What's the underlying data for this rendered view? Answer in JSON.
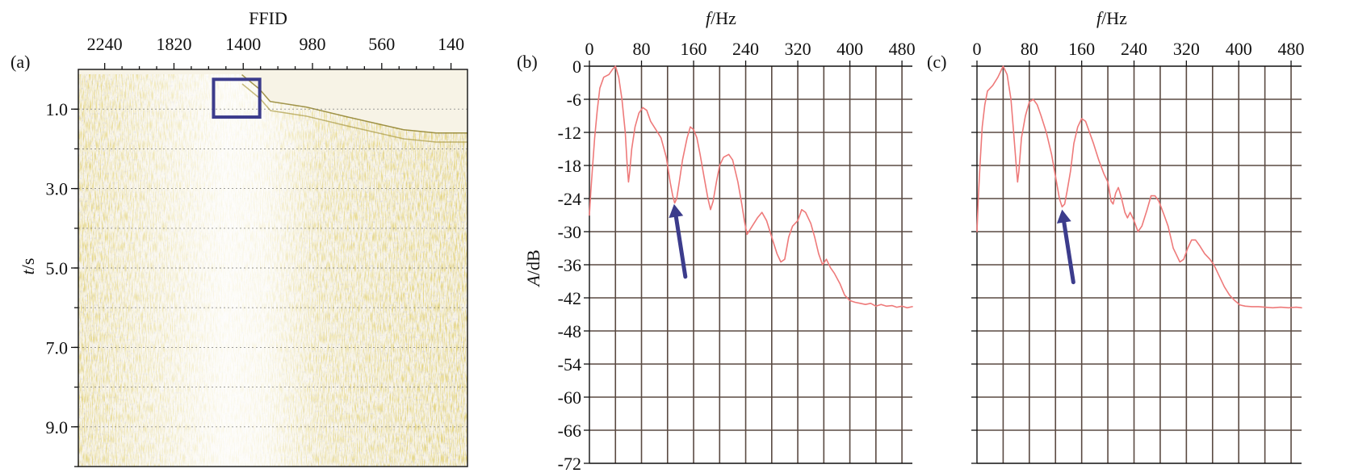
{
  "panel_a": {
    "label": "(a)",
    "xlabel": "FFID",
    "ylabel_italic": "t",
    "ylabel_unit": "/s",
    "colors": {
      "trace_gold": "#c8a832",
      "trace_blue": "#8a8ab4",
      "box": "#3c3c8c"
    }
  },
  "panel_b": {
    "label": "(b)",
    "xlabel_italic": "f",
    "xlabel_unit": "/Hz",
    "ylabel_italic": "A",
    "ylabel_unit": "/dB"
  },
  "panel_c": {
    "label": "(c)",
    "xlabel_italic": "f",
    "xlabel_unit": "/Hz"
  },
  "chart_data": [
    {
      "id": "a",
      "type": "heatmap",
      "title": "",
      "xlabel": "FFID",
      "ylabel": "t/s",
      "x_ticks": [
        "2240",
        "1820",
        "1400",
        "980",
        "560",
        "140"
      ],
      "x_range": [
        2400,
        40
      ],
      "y_ticks": [
        "1.0",
        "3.0",
        "5.0",
        "7.0",
        "9.0"
      ],
      "y_range": [
        0,
        10.0
      ],
      "grid": "horizontal dotted",
      "highlight_box": {
        "ffid": [
          1580,
          1300
        ],
        "t": [
          0.25,
          1.2
        ]
      }
    },
    {
      "id": "b",
      "type": "line",
      "title": "",
      "xlabel": "f/Hz",
      "ylabel": "A/dB",
      "x_ticks": [
        "0",
        "80",
        "160",
        "240",
        "320",
        "400",
        "480"
      ],
      "y_ticks": [
        "0",
        "-6",
        "-12",
        "-18",
        "-24",
        "-30",
        "-36",
        "-42",
        "-48",
        "-54",
        "-60",
        "-66",
        "-72"
      ],
      "xlim": [
        0,
        496
      ],
      "ylim": [
        -72,
        0
      ],
      "grid": true,
      "color": "#ee7a7a",
      "series": [
        {
          "points": [
            [
              0,
              -27
            ],
            [
              2,
              -23
            ],
            [
              5,
              -18
            ],
            [
              8,
              -13
            ],
            [
              12,
              -8
            ],
            [
              16,
              -4
            ],
            [
              22,
              -2
            ],
            [
              30,
              -1.5
            ],
            [
              36,
              -0.5
            ],
            [
              40,
              0
            ],
            [
              45,
              -2
            ],
            [
              50,
              -6
            ],
            [
              55,
              -12
            ],
            [
              58,
              -18
            ],
            [
              60,
              -21
            ],
            [
              62,
              -19
            ],
            [
              65,
              -15
            ],
            [
              70,
              -11
            ],
            [
              76,
              -8.5
            ],
            [
              82,
              -7.5
            ],
            [
              88,
              -8
            ],
            [
              94,
              -10
            ],
            [
              102,
              -11.5
            ],
            [
              110,
              -13
            ],
            [
              118,
              -16.5
            ],
            [
              124,
              -21
            ],
            [
              128,
              -23.5
            ],
            [
              131,
              -24.8
            ],
            [
              134,
              -24
            ],
            [
              138,
              -21
            ],
            [
              143,
              -17
            ],
            [
              150,
              -13
            ],
            [
              155,
              -11
            ],
            [
              160,
              -11.5
            ],
            [
              165,
              -13
            ],
            [
              170,
              -16
            ],
            [
              176,
              -20
            ],
            [
              182,
              -24
            ],
            [
              186,
              -26
            ],
            [
              190,
              -24.5
            ],
            [
              195,
              -21
            ],
            [
              200,
              -18
            ],
            [
              206,
              -16.5
            ],
            [
              214,
              -16
            ],
            [
              220,
              -17
            ],
            [
              228,
              -21
            ],
            [
              234,
              -25
            ],
            [
              238,
              -28
            ],
            [
              242,
              -30.5
            ],
            [
              250,
              -29
            ],
            [
              258,
              -27.5
            ],
            [
              265,
              -26.5
            ],
            [
              272,
              -28
            ],
            [
              280,
              -31
            ],
            [
              288,
              -34
            ],
            [
              294,
              -35.5
            ],
            [
              300,
              -35
            ],
            [
              306,
              -31
            ],
            [
              312,
              -29
            ],
            [
              320,
              -28
            ],
            [
              326,
              -26
            ],
            [
              332,
              -26.5
            ],
            [
              340,
              -28.5
            ],
            [
              346,
              -31
            ],
            [
              352,
              -34
            ],
            [
              358,
              -36
            ],
            [
              364,
              -35
            ],
            [
              370,
              -36.5
            ],
            [
              376,
              -37.5
            ],
            [
              385,
              -39.5
            ],
            [
              392,
              -41.5
            ],
            [
              400,
              -42.5
            ],
            [
              408,
              -42.8
            ],
            [
              416,
              -43
            ],
            [
              424,
              -43.2
            ],
            [
              432,
              -43
            ],
            [
              440,
              -43.5
            ],
            [
              448,
              -43.2
            ],
            [
              456,
              -43.5
            ],
            [
              465,
              -43.4
            ],
            [
              472,
              -43.7
            ],
            [
              480,
              -43.5
            ],
            [
              488,
              -43.8
            ],
            [
              496,
              -43.6
            ]
          ]
        }
      ],
      "annotations": [
        {
          "type": "arrow",
          "point_to": [
            130,
            -25
          ],
          "color": "#3c3c8c"
        }
      ]
    },
    {
      "id": "c",
      "type": "line",
      "title": "",
      "xlabel": "f/Hz",
      "ylabel": "",
      "x_ticks": [
        "0",
        "80",
        "160",
        "240",
        "320",
        "400",
        "480"
      ],
      "xlim": [
        0,
        496
      ],
      "ylim": [
        -72,
        0
      ],
      "grid": true,
      "color": "#ee7a7a",
      "series": [
        {
          "points": [
            [
              0,
              -30
            ],
            [
              2,
              -24
            ],
            [
              5,
              -17
            ],
            [
              8,
              -11
            ],
            [
              12,
              -7
            ],
            [
              16,
              -4.5
            ],
            [
              24,
              -3.5
            ],
            [
              32,
              -2
            ],
            [
              40,
              0
            ],
            [
              46,
              -1.5
            ],
            [
              52,
              -6
            ],
            [
              56,
              -12
            ],
            [
              60,
              -18
            ],
            [
              62,
              -21
            ],
            [
              64,
              -19
            ],
            [
              68,
              -13
            ],
            [
              74,
              -9
            ],
            [
              80,
              -6.5
            ],
            [
              86,
              -6
            ],
            [
              92,
              -7
            ],
            [
              98,
              -9
            ],
            [
              106,
              -12
            ],
            [
              114,
              -16
            ],
            [
              120,
              -20
            ],
            [
              126,
              -24
            ],
            [
              130,
              -25.5
            ],
            [
              134,
              -25
            ],
            [
              138,
              -22.5
            ],
            [
              143,
              -19
            ],
            [
              148,
              -14
            ],
            [
              154,
              -11
            ],
            [
              160,
              -9.5
            ],
            [
              166,
              -10
            ],
            [
              172,
              -12
            ],
            [
              178,
              -14
            ],
            [
              186,
              -17
            ],
            [
              194,
              -19.5
            ],
            [
              200,
              -21
            ],
            [
              205,
              -24.5
            ],
            [
              208,
              -25
            ],
            [
              212,
              -23
            ],
            [
              216,
              -22
            ],
            [
              220,
              -23.5
            ],
            [
              226,
              -26.5
            ],
            [
              230,
              -27.5
            ],
            [
              234,
              -26.5
            ],
            [
              240,
              -28
            ],
            [
              246,
              -30
            ],
            [
              252,
              -29
            ],
            [
              260,
              -26
            ],
            [
              266,
              -23.5
            ],
            [
              272,
              -23.5
            ],
            [
              278,
              -24.5
            ],
            [
              286,
              -27
            ],
            [
              292,
              -29
            ],
            [
              296,
              -31
            ],
            [
              300,
              -33
            ],
            [
              304,
              -34
            ],
            [
              310,
              -35.5
            ],
            [
              316,
              -35
            ],
            [
              322,
              -33
            ],
            [
              328,
              -31.5
            ],
            [
              334,
              -31.5
            ],
            [
              340,
              -32.5
            ],
            [
              348,
              -34
            ],
            [
              356,
              -35
            ],
            [
              362,
              -36
            ],
            [
              370,
              -38
            ],
            [
              378,
              -40
            ],
            [
              386,
              -41.5
            ],
            [
              394,
              -42.5
            ],
            [
              402,
              -43.3
            ],
            [
              410,
              -43.5
            ],
            [
              420,
              -43.6
            ],
            [
              430,
              -43.6
            ],
            [
              440,
              -43.7
            ],
            [
              452,
              -43.8
            ],
            [
              464,
              -43.7
            ],
            [
              476,
              -43.8
            ],
            [
              488,
              -43.7
            ],
            [
              496,
              -43.8
            ]
          ]
        }
      ],
      "annotations": [
        {
          "type": "arrow",
          "point_to": [
            130,
            -26
          ],
          "color": "#3c3c8c"
        }
      ]
    }
  ]
}
